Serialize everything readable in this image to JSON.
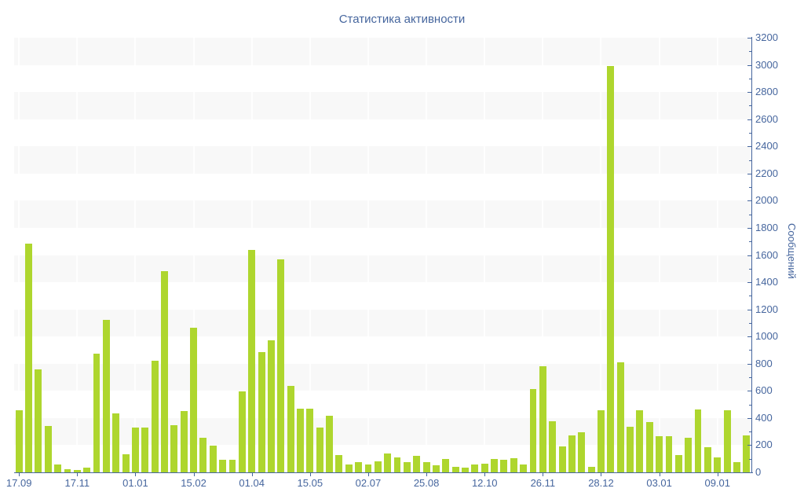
{
  "chart_data": {
    "type": "bar",
    "title": "Статистика активности",
    "ylabel": "Сообщений",
    "xlabel": "",
    "ylim": [
      0,
      3200
    ],
    "y_tick_step": 200,
    "y_minor_tick_step": 100,
    "grid": "horizontal striped bands every 200 units",
    "legend": "none",
    "bar_count": 76,
    "values": [
      455,
      1685,
      760,
      340,
      60,
      25,
      15,
      35,
      875,
      1125,
      435,
      135,
      330,
      330,
      820,
      1480,
      345,
      450,
      1065,
      255,
      195,
      95,
      95,
      595,
      1640,
      885,
      975,
      1570,
      635,
      470,
      470,
      330,
      415,
      130,
      60,
      75,
      55,
      80,
      140,
      110,
      75,
      120,
      75,
      50,
      100,
      40,
      35,
      55,
      65,
      100,
      90,
      105,
      60,
      615,
      780,
      375,
      190,
      270,
      295,
      40,
      460,
      2990,
      810,
      335,
      455,
      370,
      265,
      265,
      125,
      255,
      465,
      185,
      110,
      460,
      75,
      270
    ],
    "x_tick_labels": [
      {
        "index": 0,
        "label": "17.09"
      },
      {
        "index": 6,
        "label": "17.11"
      },
      {
        "index": 12,
        "label": "01.01"
      },
      {
        "index": 18,
        "label": "15.02"
      },
      {
        "index": 24,
        "label": "01.04"
      },
      {
        "index": 30,
        "label": "15.05"
      },
      {
        "index": 36,
        "label": "02.07"
      },
      {
        "index": 42,
        "label": "25.08"
      },
      {
        "index": 48,
        "label": "12.10"
      },
      {
        "index": 54,
        "label": "26.11"
      },
      {
        "index": 60,
        "label": "28.12"
      },
      {
        "index": 66,
        "label": "03.01"
      },
      {
        "index": 72,
        "label": "09.01"
      }
    ],
    "colors": {
      "bar": "#aed62e",
      "axis": "#46669e",
      "text": "#46669e",
      "stripe": "#f8f8f8",
      "vertical_grid": "#ffffff",
      "background": "#ffffff"
    }
  }
}
